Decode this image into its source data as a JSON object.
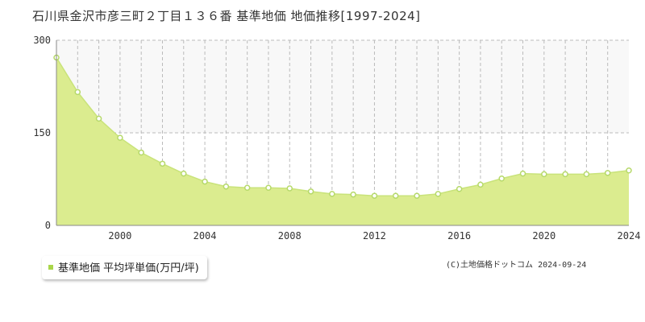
{
  "title": "石川県金沢市彦三町２丁目１３６番 基準地価 地価推移[1997-2024]",
  "legend_label": "基準地価 平均坪単価(万円/坪)",
  "copyright": "(C)土地価格ドットコム 2024-09-24",
  "colors": {
    "fill": "#dbec8f",
    "line": "#c9e37a",
    "point_stroke": "#b6d96a",
    "grid": "#bbbbbb",
    "band": "#f8f8f8",
    "legend_swatch": "#a9d64a"
  },
  "chart_data": {
    "type": "area",
    "title": "",
    "xlabel": "",
    "ylabel": "",
    "xlim": [
      1997,
      2024
    ],
    "ylim": [
      0,
      300
    ],
    "yticks": [
      0,
      150,
      300
    ],
    "xticks": [
      2000,
      2004,
      2008,
      2012,
      2016,
      2020,
      2024
    ],
    "grid": true,
    "legend_position": "bottom-left",
    "series": [
      {
        "name": "基準地価 平均坪単価(万円/坪)",
        "x": [
          1997,
          1998,
          1999,
          2000,
          2001,
          2002,
          2003,
          2004,
          2005,
          2006,
          2007,
          2008,
          2009,
          2010,
          2011,
          2012,
          2013,
          2014,
          2015,
          2016,
          2017,
          2018,
          2019,
          2020,
          2021,
          2022,
          2023,
          2024
        ],
        "values": [
          272,
          216,
          173,
          142,
          118,
          100,
          84,
          71,
          63,
          61,
          61,
          60,
          55,
          51,
          50,
          48,
          48,
          48,
          51,
          59,
          66,
          76,
          84,
          83,
          83,
          83,
          85,
          89
        ]
      }
    ]
  }
}
